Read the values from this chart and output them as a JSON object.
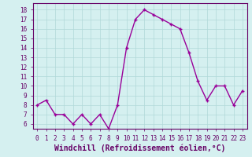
{
  "x": [
    0,
    1,
    2,
    3,
    4,
    5,
    6,
    7,
    8,
    9,
    10,
    11,
    12,
    13,
    14,
    15,
    16,
    17,
    18,
    19,
    20,
    21,
    22,
    23
  ],
  "y": [
    8.0,
    8.5,
    7.0,
    7.0,
    6.0,
    7.0,
    6.0,
    7.0,
    5.5,
    8.0,
    14.0,
    17.0,
    18.0,
    17.5,
    17.0,
    16.5,
    16.0,
    13.5,
    10.5,
    8.5,
    10.0,
    10.0,
    8.0,
    9.5
  ],
  "line_color": "#990099",
  "marker": "P",
  "marker_size": 2.5,
  "bg_color": "#d5f0f0",
  "grid_color": "#b0d8d8",
  "xlabel": "Windchill (Refroidissement éolien,°C)",
  "xlabel_fontsize": 7,
  "ylim": [
    5.5,
    18.7
  ],
  "xlim": [
    -0.5,
    23.5
  ],
  "xtick_fontsize": 5.5,
  "ytick_fontsize": 5.5,
  "linewidth": 1.0
}
